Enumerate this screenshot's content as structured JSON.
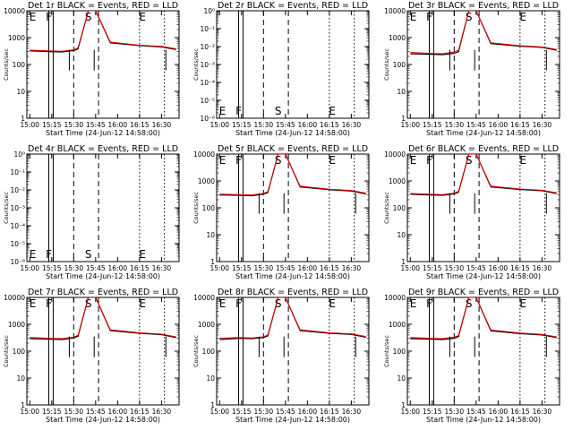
{
  "chart_data": [
    {
      "type": "line",
      "title": "Det 1r BLACK = Events, RED = LLD",
      "xlabel": "Start Time (24-Jun-12 14:58:00)",
      "ylabel": "Counts/sec",
      "xticks": [
        "15:00",
        "15:15",
        "15:30",
        "15:45",
        "16:00",
        "16:15",
        "16:30"
      ],
      "yticks": [
        "1",
        "10",
        "100",
        "1000",
        "10000"
      ],
      "ylim": [
        1,
        10000
      ],
      "log_y": true,
      "has_data": true,
      "markers": [
        {
          "label": "E",
          "x": "15:02"
        },
        {
          "label": "F",
          "x": "15:13"
        },
        {
          "label": "S",
          "x": "15:40"
        },
        {
          "label": "E",
          "x": "16:17"
        }
      ],
      "series": [
        {
          "name": "Events",
          "color": "#000000",
          "x": [
            "15:00",
            "15:13",
            "15:22",
            "15:30",
            "15:33",
            "15:40",
            "15:45",
            "15:55",
            "16:15",
            "16:30",
            "16:40"
          ],
          "values": [
            320,
            300,
            290,
            330,
            380,
            10000,
            10000,
            640,
            500,
            450,
            360
          ]
        },
        {
          "name": "LLD",
          "color": "#dd0000",
          "x": [
            "15:00",
            "15:13",
            "15:22",
            "15:30",
            "15:33",
            "15:40",
            "15:45",
            "15:55",
            "16:15",
            "16:30",
            "16:40"
          ],
          "values": [
            340,
            320,
            310,
            350,
            420,
            10000,
            10000,
            680,
            520,
            470,
            380
          ]
        }
      ]
    },
    {
      "type": "line",
      "title": "Det 2r BLACK = Events, RED = LLD",
      "xlabel": "Start Time (24-Jun-12 14:58:00)",
      "ylabel": "Counts/sec",
      "xticks": [
        "15:00",
        "15:15",
        "15:30",
        "15:45",
        "16:00",
        "16:15",
        "16:30"
      ],
      "yticks": [
        "10⁻⁶",
        "10⁻⁵",
        "10⁻⁴",
        "10⁻³",
        "10⁻²",
        "10⁻¹",
        "10⁰"
      ],
      "ylim": [
        1e-06,
        1
      ],
      "log_y": true,
      "has_data": false,
      "markers": [
        {
          "label": "E",
          "x": "15:02"
        },
        {
          "label": "F",
          "x": "15:13"
        },
        {
          "label": "S",
          "x": "15:40"
        },
        {
          "label": "E",
          "x": "16:17"
        }
      ],
      "series": []
    },
    {
      "type": "line",
      "title": "Det 3r BLACK = Events, RED = LLD",
      "xlabel": "Start Time (24-Jun-12 14:58:00)",
      "ylabel": "Counts/sec",
      "xticks": [
        "15:00",
        "15:15",
        "15:30",
        "15:45",
        "16:00",
        "16:15",
        "16:30"
      ],
      "yticks": [
        "1",
        "10",
        "100",
        "1000",
        "10000"
      ],
      "ylim": [
        1,
        10000
      ],
      "log_y": true,
      "has_data": true,
      "markers": [
        {
          "label": "E",
          "x": "15:02"
        },
        {
          "label": "F",
          "x": "15:13"
        },
        {
          "label": "S",
          "x": "15:40"
        },
        {
          "label": "E",
          "x": "16:17"
        }
      ],
      "series": [
        {
          "name": "Events",
          "color": "#000000",
          "x": [
            "15:00",
            "15:13",
            "15:22",
            "15:30",
            "15:33",
            "15:40",
            "15:45",
            "15:55",
            "16:15",
            "16:30",
            "16:40"
          ],
          "values": [
            250,
            240,
            230,
            260,
            300,
            10000,
            10000,
            600,
            480,
            430,
            340
          ]
        },
        {
          "name": "LLD",
          "color": "#dd0000",
          "x": [
            "15:00",
            "15:13",
            "15:22",
            "15:30",
            "15:33",
            "15:40",
            "15:45",
            "15:55",
            "16:15",
            "16:30",
            "16:40"
          ],
          "values": [
            280,
            260,
            250,
            290,
            340,
            10000,
            10000,
            640,
            500,
            450,
            360
          ]
        }
      ]
    },
    {
      "type": "line",
      "title": "Det 4r BLACK = Events, RED = LLD",
      "xlabel": "Start Time (24-Jun-12 14:58:00)",
      "ylabel": "Counts/sec",
      "xticks": [
        "15:00",
        "15:15",
        "15:30",
        "15:45",
        "16:00",
        "16:15",
        "16:30"
      ],
      "yticks": [
        "10⁻⁶",
        "10⁻⁵",
        "10⁻⁴",
        "10⁻³",
        "10⁻²",
        "10⁻¹",
        "10⁰"
      ],
      "ylim": [
        1e-06,
        1
      ],
      "log_y": true,
      "has_data": false,
      "markers": [
        {
          "label": "E",
          "x": "15:02"
        },
        {
          "label": "F",
          "x": "15:13"
        },
        {
          "label": "S",
          "x": "15:40"
        },
        {
          "label": "E",
          "x": "16:17"
        }
      ],
      "series": []
    },
    {
      "type": "line",
      "title": "Det 5r BLACK = Events, RED = LLD",
      "xlabel": "Start Time (24-Jun-12 14:58:00)",
      "ylabel": "Counts/sec",
      "xticks": [
        "15:00",
        "15:15",
        "15:30",
        "15:45",
        "16:00",
        "16:15",
        "16:30"
      ],
      "yticks": [
        "1",
        "10",
        "100",
        "1000",
        "10000"
      ],
      "ylim": [
        1,
        10000
      ],
      "log_y": true,
      "has_data": true,
      "markers": [
        {
          "label": "E",
          "x": "15:02"
        },
        {
          "label": "F",
          "x": "15:13"
        },
        {
          "label": "S",
          "x": "15:40"
        },
        {
          "label": "E",
          "x": "16:17"
        }
      ],
      "series": [
        {
          "name": "Events",
          "color": "#000000",
          "x": [
            "15:00",
            "15:13",
            "15:22",
            "15:30",
            "15:33",
            "15:40",
            "15:45",
            "15:55",
            "16:15",
            "16:30",
            "16:40"
          ],
          "values": [
            300,
            290,
            280,
            320,
            370,
            10000,
            10000,
            600,
            470,
            420,
            330
          ]
        },
        {
          "name": "LLD",
          "color": "#dd0000",
          "x": [
            "15:00",
            "15:13",
            "15:22",
            "15:30",
            "15:33",
            "15:40",
            "15:45",
            "15:55",
            "16:15",
            "16:30",
            "16:40"
          ],
          "values": [
            320,
            310,
            300,
            340,
            400,
            10000,
            10000,
            640,
            490,
            440,
            350
          ]
        }
      ]
    },
    {
      "type": "line",
      "title": "Det 6r BLACK = Events, RED = LLD",
      "xlabel": "Start Time (24-Jun-12 14:58:00)",
      "ylabel": "Counts/sec",
      "xticks": [
        "15:00",
        "15:15",
        "15:30",
        "15:45",
        "16:00",
        "16:15",
        "16:30"
      ],
      "yticks": [
        "1",
        "10",
        "100",
        "1000",
        "10000"
      ],
      "ylim": [
        1,
        10000
      ],
      "log_y": true,
      "has_data": true,
      "markers": [
        {
          "label": "E",
          "x": "15:02"
        },
        {
          "label": "F",
          "x": "15:13"
        },
        {
          "label": "S",
          "x": "15:40"
        },
        {
          "label": "E",
          "x": "16:17"
        }
      ],
      "series": [
        {
          "name": "Events",
          "color": "#000000",
          "x": [
            "15:00",
            "15:13",
            "15:22",
            "15:30",
            "15:33",
            "15:40",
            "15:45",
            "15:55",
            "16:15",
            "16:30",
            "16:40"
          ],
          "values": [
            320,
            300,
            290,
            330,
            380,
            10000,
            10000,
            600,
            480,
            430,
            340
          ]
        },
        {
          "name": "LLD",
          "color": "#dd0000",
          "x": [
            "15:00",
            "15:13",
            "15:22",
            "15:30",
            "15:33",
            "15:40",
            "15:45",
            "15:55",
            "16:15",
            "16:30",
            "16:40"
          ],
          "values": [
            340,
            320,
            310,
            350,
            410,
            10000,
            10000,
            640,
            500,
            450,
            360
          ]
        }
      ]
    },
    {
      "type": "line",
      "title": "Det 7r BLACK = Events, RED = LLD",
      "xlabel": "Start Time (24-Jun-12 14:58:00)",
      "ylabel": "Counts/sec",
      "xticks": [
        "15:00",
        "15:15",
        "15:30",
        "15:45",
        "16:00",
        "16:15",
        "16:30"
      ],
      "yticks": [
        "1",
        "10",
        "100",
        "1000",
        "10000"
      ],
      "ylim": [
        1,
        10000
      ],
      "log_y": true,
      "has_data": true,
      "markers": [
        {
          "label": "E",
          "x": "15:02"
        },
        {
          "label": "F",
          "x": "15:13"
        },
        {
          "label": "S",
          "x": "15:40"
        },
        {
          "label": "E",
          "x": "16:17"
        }
      ],
      "series": [
        {
          "name": "Events",
          "color": "#000000",
          "x": [
            "15:00",
            "15:13",
            "15:22",
            "15:30",
            "15:33",
            "15:40",
            "15:45",
            "15:55",
            "16:15",
            "16:30",
            "16:40"
          ],
          "values": [
            290,
            280,
            270,
            310,
            360,
            10000,
            10000,
            580,
            460,
            410,
            320
          ]
        },
        {
          "name": "LLD",
          "color": "#dd0000",
          "x": [
            "15:00",
            "15:13",
            "15:22",
            "15:30",
            "15:33",
            "15:40",
            "15:45",
            "15:55",
            "16:15",
            "16:30",
            "16:40"
          ],
          "values": [
            320,
            300,
            290,
            330,
            390,
            10000,
            10000,
            620,
            480,
            430,
            340
          ]
        }
      ]
    },
    {
      "type": "line",
      "title": "Det 8r BLACK = Events, RED = LLD",
      "xlabel": "Start Time (24-Jun-12 14:58:00)",
      "ylabel": "Counts/sec",
      "xticks": [
        "15:00",
        "15:15",
        "15:30",
        "15:45",
        "16:00",
        "16:15",
        "16:30"
      ],
      "yticks": [
        "1",
        "10",
        "100",
        "1000",
        "10000"
      ],
      "ylim": [
        1,
        10000
      ],
      "log_y": true,
      "has_data": true,
      "markers": [
        {
          "label": "E",
          "x": "15:02"
        },
        {
          "label": "F",
          "x": "15:13"
        },
        {
          "label": "S",
          "x": "15:40"
        },
        {
          "label": "E",
          "x": "16:17"
        }
      ],
      "series": [
        {
          "name": "Events",
          "color": "#000000",
          "x": [
            "15:00",
            "15:13",
            "15:22",
            "15:30",
            "15:33",
            "15:40",
            "15:45",
            "15:55",
            "16:15",
            "16:30",
            "16:40"
          ],
          "values": [
            270,
            300,
            290,
            320,
            370,
            10000,
            10000,
            580,
            460,
            420,
            330
          ]
        },
        {
          "name": "LLD",
          "color": "#dd0000",
          "x": [
            "15:00",
            "15:13",
            "15:22",
            "15:30",
            "15:33",
            "15:40",
            "15:45",
            "15:55",
            "16:15",
            "16:30",
            "16:40"
          ],
          "values": [
            300,
            320,
            310,
            340,
            400,
            10000,
            10000,
            620,
            480,
            440,
            350
          ]
        }
      ]
    },
    {
      "type": "line",
      "title": "Det 9r BLACK = Events, RED = LLD",
      "xlabel": "Start Time (24-Jun-12 14:58:00)",
      "ylabel": "Counts/sec",
      "xticks": [
        "15:00",
        "15:15",
        "15:30",
        "15:45",
        "16:00",
        "16:15",
        "16:30"
      ],
      "yticks": [
        "1",
        "10",
        "100",
        "1000",
        "10000"
      ],
      "ylim": [
        1,
        10000
      ],
      "log_y": true,
      "has_data": true,
      "markers": [
        {
          "label": "E",
          "x": "15:02"
        },
        {
          "label": "F",
          "x": "15:13"
        },
        {
          "label": "S",
          "x": "15:40"
        },
        {
          "label": "E",
          "x": "16:17"
        }
      ],
      "series": [
        {
          "name": "Events",
          "color": "#000000",
          "x": [
            "15:00",
            "15:13",
            "15:22",
            "15:30",
            "15:33",
            "15:40",
            "15:45",
            "15:55",
            "16:15",
            "16:30",
            "16:40"
          ],
          "values": [
            290,
            280,
            270,
            300,
            350,
            10000,
            10000,
            570,
            450,
            400,
            320
          ]
        },
        {
          "name": "LLD",
          "color": "#dd0000",
          "x": [
            "15:00",
            "15:13",
            "15:22",
            "15:30",
            "15:33",
            "15:40",
            "15:45",
            "15:55",
            "16:15",
            "16:30",
            "16:40"
          ],
          "values": [
            320,
            300,
            290,
            330,
            380,
            10000,
            10000,
            610,
            470,
            420,
            340
          ]
        }
      ]
    }
  ]
}
